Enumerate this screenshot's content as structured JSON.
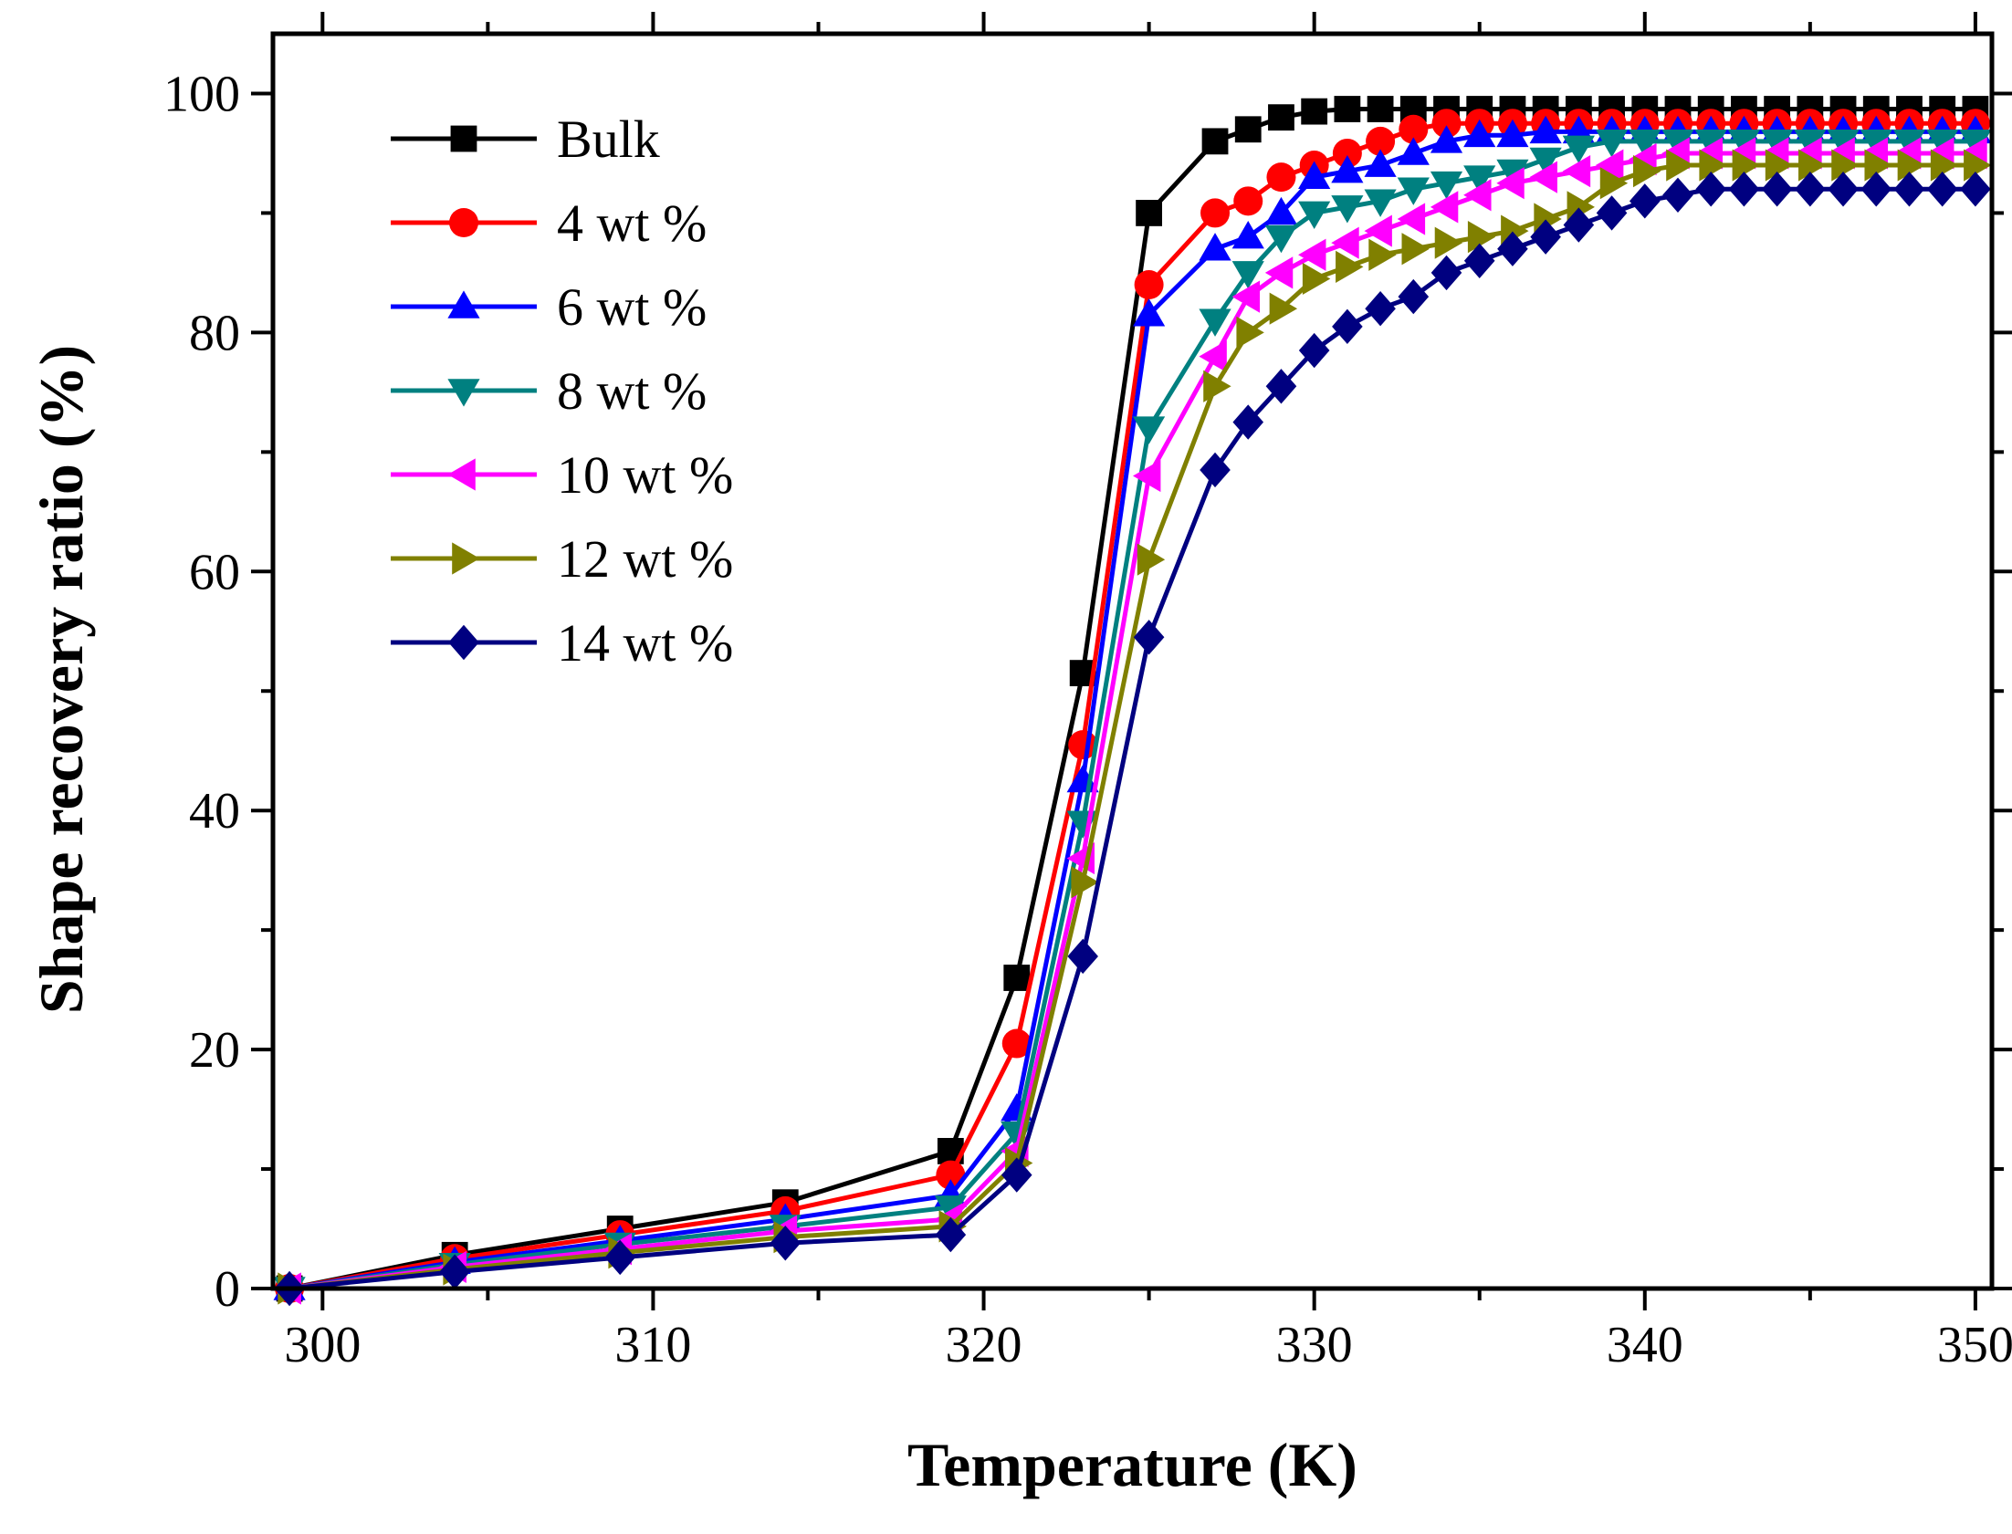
{
  "chart_data": {
    "type": "line",
    "title": "",
    "xlabel": "Temperature (K)",
    "ylabel": "Shape recovery ratio (%)",
    "xlim": [
      298.5,
      350.5
    ],
    "ylim": [
      0,
      105
    ],
    "xticks": [
      300,
      310,
      320,
      330,
      340,
      350
    ],
    "yticks": [
      0,
      20,
      40,
      60,
      80,
      100
    ],
    "grid": false,
    "legend_position": "top-left",
    "x": [
      299,
      304,
      309,
      314,
      319,
      321,
      323,
      325,
      327,
      328,
      329,
      330,
      331,
      332,
      333,
      334,
      335,
      336,
      337,
      338,
      339,
      340,
      341,
      342,
      343,
      344,
      345,
      346,
      347,
      348,
      349,
      350
    ],
    "series": [
      {
        "name": "Bulk",
        "color": "#000000",
        "marker": "square",
        "values": [
          0,
          2.8,
          5.0,
          7.2,
          11.5,
          26.0,
          51.5,
          90.0,
          96.0,
          97.0,
          98.0,
          98.5,
          98.7,
          98.7,
          98.7,
          98.7,
          98.7,
          98.7,
          98.7,
          98.7,
          98.7,
          98.7,
          98.7,
          98.7,
          98.7,
          98.7,
          98.7,
          98.7,
          98.7,
          98.7,
          98.7,
          98.7
        ]
      },
      {
        "name": "4 wt %",
        "color": "#ff0000",
        "marker": "circle",
        "values": [
          0,
          2.5,
          4.5,
          6.5,
          9.5,
          20.5,
          45.5,
          84.0,
          90.0,
          91.0,
          93.0,
          94.0,
          95.0,
          96.0,
          97.0,
          97.5,
          97.5,
          97.5,
          97.5,
          97.5,
          97.5,
          97.5,
          97.5,
          97.5,
          97.5,
          97.5,
          97.5,
          97.5,
          97.5,
          97.5,
          97.5,
          97.5
        ]
      },
      {
        "name": "6 wt %",
        "color": "#0000ff",
        "marker": "triangle-up",
        "values": [
          0,
          2.2,
          4.0,
          5.8,
          7.8,
          15.0,
          42.5,
          81.5,
          87.0,
          88.0,
          90.0,
          93.0,
          93.5,
          94.0,
          95.0,
          96.0,
          96.5,
          96.5,
          96.8,
          96.8,
          96.8,
          96.8,
          96.8,
          96.8,
          96.8,
          96.8,
          96.8,
          96.8,
          96.8,
          96.8,
          96.8,
          96.8
        ]
      },
      {
        "name": "8 wt %",
        "color": "#008080",
        "marker": "triangle-down",
        "values": [
          0,
          2.0,
          3.7,
          5.2,
          6.8,
          13.0,
          39.0,
          72.0,
          81.0,
          85.0,
          88.0,
          90.0,
          90.5,
          91.0,
          92.0,
          92.5,
          93.0,
          93.5,
          94.5,
          95.5,
          96.0,
          96.0,
          96.0,
          96.0,
          96.0,
          96.0,
          96.0,
          96.0,
          96.0,
          96.0,
          96.0,
          96.0
        ]
      },
      {
        "name": "10 wt %",
        "color": "#ff00ff",
        "marker": "triangle-left",
        "values": [
          0,
          1.8,
          3.3,
          4.8,
          5.8,
          11.5,
          36.0,
          68.0,
          78.0,
          83.0,
          85.0,
          86.5,
          87.5,
          88.5,
          89.5,
          90.5,
          91.5,
          92.5,
          93.0,
          93.5,
          94.0,
          94.5,
          95.0,
          95.0,
          95.0,
          95.0,
          95.0,
          95.0,
          95.0,
          95.0,
          95.0,
          95.0
        ]
      },
      {
        "name": "12 wt %",
        "color": "#808000",
        "marker": "triangle-right",
        "values": [
          0,
          1.6,
          3.0,
          4.3,
          5.2,
          10.5,
          34.0,
          61.0,
          75.5,
          80.0,
          82.0,
          84.5,
          85.5,
          86.5,
          87.0,
          87.5,
          88.0,
          88.5,
          89.5,
          90.5,
          92.5,
          93.5,
          94.0,
          94.0,
          94.0,
          94.0,
          94.0,
          94.0,
          94.0,
          94.0,
          94.0,
          94.0
        ]
      },
      {
        "name": "14 wt %",
        "color": "#000080",
        "marker": "diamond",
        "values": [
          0,
          1.4,
          2.6,
          3.8,
          4.5,
          9.5,
          27.8,
          54.5,
          68.5,
          72.5,
          75.5,
          78.5,
          80.5,
          82.0,
          83.0,
          85.0,
          86.0,
          87.0,
          88.0,
          89.0,
          90.0,
          91.0,
          91.5,
          92.0,
          92.0,
          92.0,
          92.0,
          92.0,
          92.0,
          92.0,
          92.0,
          92.0
        ]
      }
    ]
  }
}
